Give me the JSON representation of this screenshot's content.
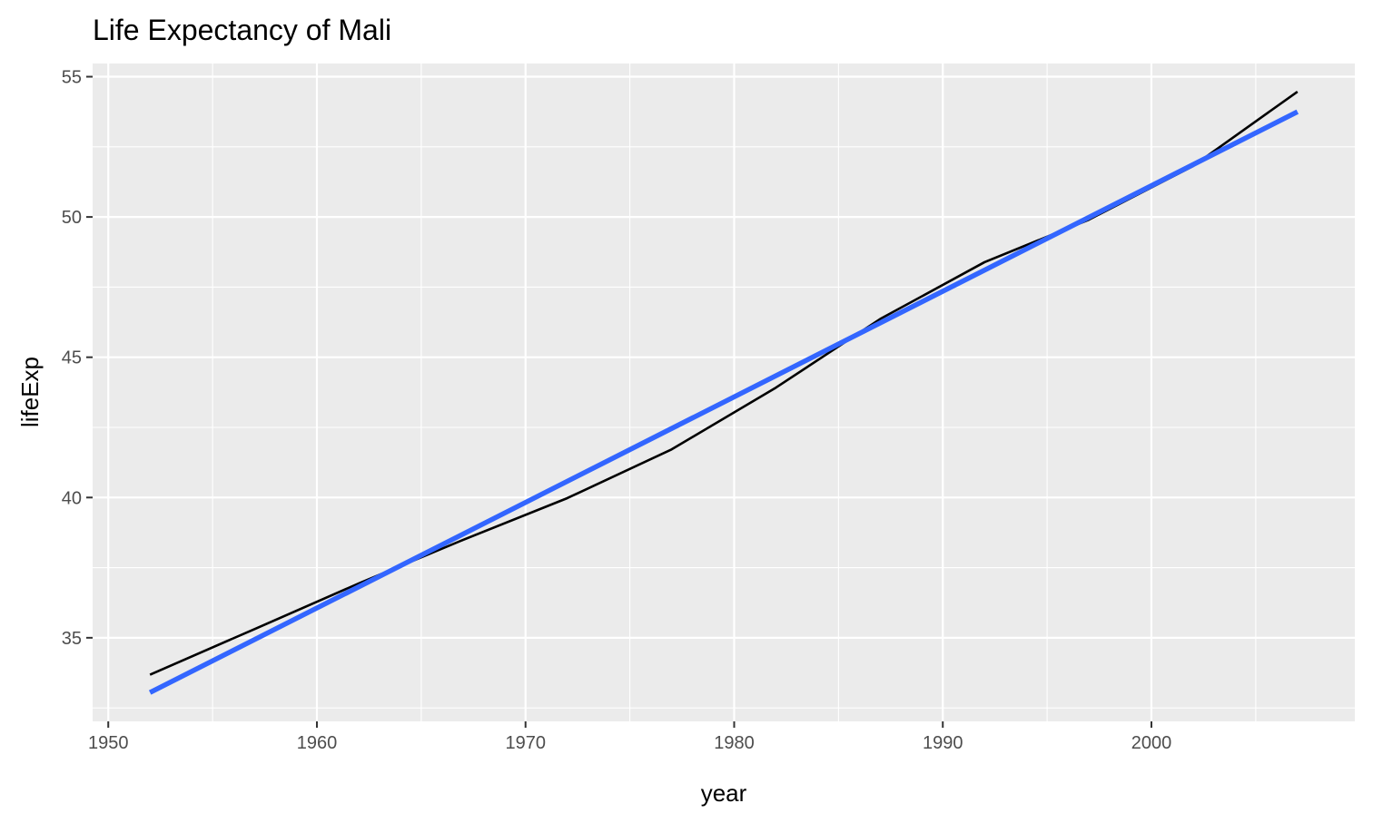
{
  "chart_data": {
    "type": "line",
    "title": "Life Expectancy of  Mali",
    "xlabel": "year",
    "ylabel": "lifeExp",
    "xlim": [
      1949.25,
      2009.75
    ],
    "ylim": [
      32.02,
      55.47
    ],
    "x_ticks": [
      1950,
      1960,
      1970,
      1980,
      1990,
      2000
    ],
    "y_ticks": [
      35,
      40,
      45,
      50,
      55
    ],
    "grid": true,
    "legend": "none",
    "panel_background": "#ebebeb",
    "series": [
      {
        "kind": "line",
        "color": "#000000",
        "x": [
          1952,
          1957,
          1962,
          1967,
          1972,
          1977,
          1982,
          1987,
          1992,
          1997,
          2002,
          2007
        ],
        "y": [
          33.685,
          35.307,
          36.936,
          38.487,
          39.977,
          41.714,
          43.916,
          46.364,
          48.388,
          49.903,
          51.818,
          54.467
        ]
      },
      {
        "kind": "trend",
        "color": "#3366ff",
        "x": [
          1952,
          2007
        ],
        "y": [
          33.05,
          53.75
        ]
      }
    ]
  }
}
